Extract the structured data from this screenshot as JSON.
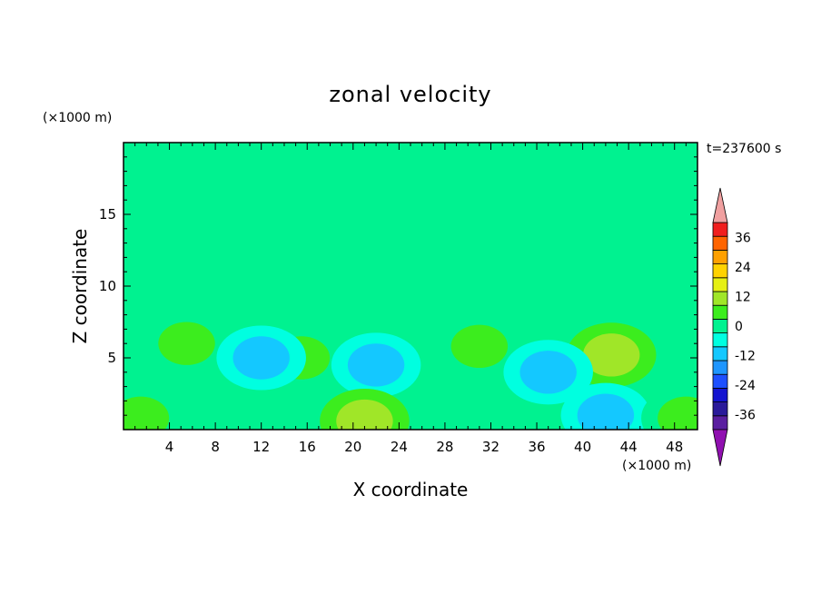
{
  "chart_data": {
    "type": "heatmap",
    "title": "zonal velocity",
    "time_label": "t=237600 s",
    "xlabel": "X coordinate",
    "ylabel": "Z coordinate",
    "x_unit": "(×1000 m)",
    "y_unit": "(×1000 m)",
    "xlim": [
      0,
      50
    ],
    "ylim": [
      0,
      20
    ],
    "x_ticks": [
      4,
      8,
      12,
      16,
      20,
      24,
      28,
      32,
      36,
      40,
      44,
      48
    ],
    "y_ticks": [
      5,
      10,
      15
    ],
    "colorbar": {
      "tick_labels": [
        "36",
        "24",
        "12",
        "0",
        "-12",
        "-24",
        "-36"
      ],
      "tick_values": [
        36,
        24,
        12,
        0,
        -12,
        -24,
        -36
      ],
      "levels": [
        -42,
        -36,
        -30,
        -24,
        -18,
        -12,
        -6,
        0,
        6,
        12,
        18,
        24,
        30,
        36,
        42
      ],
      "colors": [
        "#5a1ea0",
        "#2a1a9a",
        "#1414d0",
        "#1e50ff",
        "#1e96ff",
        "#14c8ff",
        "#00ffe0",
        "#00f290",
        "#3ced1e",
        "#a0e628",
        "#e6f014",
        "#ffd200",
        "#ffa000",
        "#ff6400",
        "#f01e1e"
      ],
      "over_color": "#f0a0a0",
      "under_color": "#9010b0"
    },
    "features": [
      {
        "x": 5.5,
        "z": 6.0,
        "value": 9
      },
      {
        "x": 15.5,
        "z": 5.0,
        "value": 7
      },
      {
        "x": 31.0,
        "z": 5.8,
        "value": 8
      },
      {
        "x": 42.5,
        "z": 5.2,
        "value": 14
      },
      {
        "x": 12.0,
        "z": 5.0,
        "value": -8
      },
      {
        "x": 22.0,
        "z": 4.5,
        "value": -7
      },
      {
        "x": 37.0,
        "z": 4.0,
        "value": -8
      },
      {
        "x": 42.0,
        "z": 1.0,
        "value": -12
      },
      {
        "x": 21.0,
        "z": 0.6,
        "value": 12
      },
      {
        "x": 1.5,
        "z": 0.8,
        "value": 10
      },
      {
        "x": 49.0,
        "z": 0.8,
        "value": 10
      },
      {
        "x": 30.0,
        "z": 12.0,
        "value": 3
      },
      {
        "x": 30.0,
        "z": 18.5,
        "value": 3
      }
    ]
  }
}
